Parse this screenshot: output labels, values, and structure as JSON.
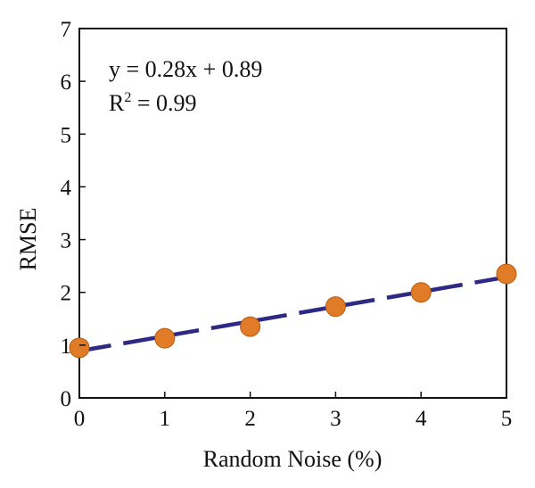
{
  "chart_data": {
    "type": "scatter",
    "xlabel": "Random Noise (%)",
    "ylabel": "RMSE",
    "xlim": [
      0,
      5
    ],
    "ylim": [
      0,
      7
    ],
    "xticks": [
      "0",
      "1",
      "2",
      "3",
      "4",
      "5"
    ],
    "yticks": [
      "0",
      "1",
      "2",
      "3",
      "4",
      "5",
      "6",
      "7"
    ],
    "grid": false,
    "series": [
      {
        "x": [
          0,
          1,
          2,
          3,
          4,
          5
        ],
        "y": [
          0.95,
          1.13,
          1.35,
          1.73,
          2.0,
          2.35
        ]
      }
    ],
    "fit_line": {
      "slope": 0.28,
      "intercept": 0.89,
      "style": "dashed"
    },
    "annotations": {
      "equation": "y = 0.28x + 0.89",
      "r2_prefix": "R",
      "r2_sup": "2",
      "r2_suffix": " = 0.99"
    },
    "colors": {
      "points": "#e07b28",
      "point_edge": "#b85c12",
      "fit_line": "#2e2a84",
      "axes": "#111111"
    }
  }
}
